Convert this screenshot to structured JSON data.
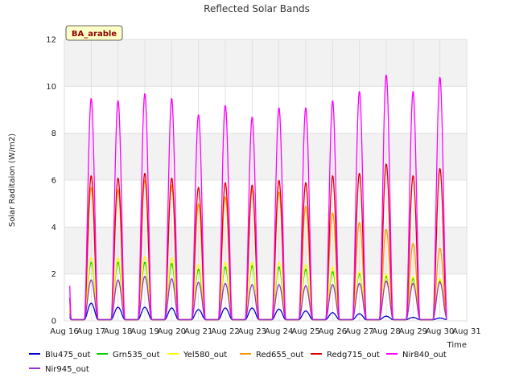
{
  "chart_data": {
    "type": "line",
    "title": "Reflected Solar Bands",
    "xlabel": "Time",
    "ylabel": "Solar Raditaion (W/m2)",
    "badge": "BA_arable",
    "ylim": [
      0,
      12
    ],
    "yticks": [
      0,
      2,
      4,
      6,
      8,
      10,
      12
    ],
    "xlim": [
      "Aug 16",
      "Aug 31"
    ],
    "xticks": [
      "Aug 16",
      "Aug 17",
      "Aug 18",
      "Aug 19",
      "Aug 20",
      "Aug 21",
      "Aug 22",
      "Aug 23",
      "Aug 24",
      "Aug 25",
      "Aug 26",
      "Aug 27",
      "Aug 28",
      "Aug 29",
      "Aug 30",
      "Aug 31"
    ],
    "grid": true,
    "legend_position": "bottom",
    "day_peak_dates": [
      "Aug 16",
      "Aug 17",
      "Aug 18",
      "Aug 19",
      "Aug 20",
      "Aug 21",
      "Aug 22",
      "Aug 23",
      "Aug 24",
      "Aug 25",
      "Aug 26",
      "Aug 27",
      "Aug 28",
      "Aug 29"
    ],
    "series": [
      {
        "name": "Blu475_out",
        "color": "#0000cc",
        "daily_peaks": [
          0.75,
          0.58,
          0.58,
          0.55,
          0.48,
          0.55,
          0.55,
          0.5,
          0.42,
          0.35,
          0.3,
          0.2,
          0.15,
          0.12
        ]
      },
      {
        "name": "Grn535_out",
        "color": "#00cc00",
        "daily_peaks": [
          2.5,
          2.5,
          2.5,
          2.45,
          2.2,
          2.3,
          2.35,
          2.3,
          2.2,
          2.1,
          2.0,
          1.9,
          1.8,
          1.7
        ]
      },
      {
        "name": "Yel580_out",
        "color": "#ffff00",
        "daily_peaks": [
          2.7,
          2.7,
          2.75,
          2.7,
          2.4,
          2.5,
          2.5,
          2.5,
          2.4,
          2.3,
          2.1,
          2.0,
          1.9,
          1.8
        ]
      },
      {
        "name": "Red655_out",
        "color": "#ff9900",
        "daily_peaks": [
          5.7,
          5.6,
          6.0,
          5.8,
          5.0,
          5.3,
          5.6,
          5.5,
          4.9,
          4.6,
          4.2,
          3.9,
          3.3,
          3.1
        ]
      },
      {
        "name": "Redg715_out",
        "color": "#dd0000",
        "daily_peaks": [
          6.2,
          6.1,
          6.3,
          6.1,
          5.7,
          5.9,
          5.8,
          6.0,
          5.9,
          6.2,
          6.3,
          6.7,
          6.2,
          6.5
        ]
      },
      {
        "name": "Nir840_out",
        "color": "#ff00ff",
        "daily_peaks": [
          9.5,
          9.4,
          9.7,
          9.5,
          8.8,
          9.2,
          8.7,
          9.1,
          9.1,
          9.4,
          9.8,
          10.5,
          9.8,
          10.4
        ]
      },
      {
        "name": "Nir945_out",
        "color": "#9933cc",
        "daily_peaks": [
          1.75,
          1.75,
          1.9,
          1.8,
          1.65,
          1.6,
          1.55,
          1.55,
          1.5,
          1.55,
          1.6,
          1.7,
          1.6,
          1.65
        ]
      }
    ]
  }
}
